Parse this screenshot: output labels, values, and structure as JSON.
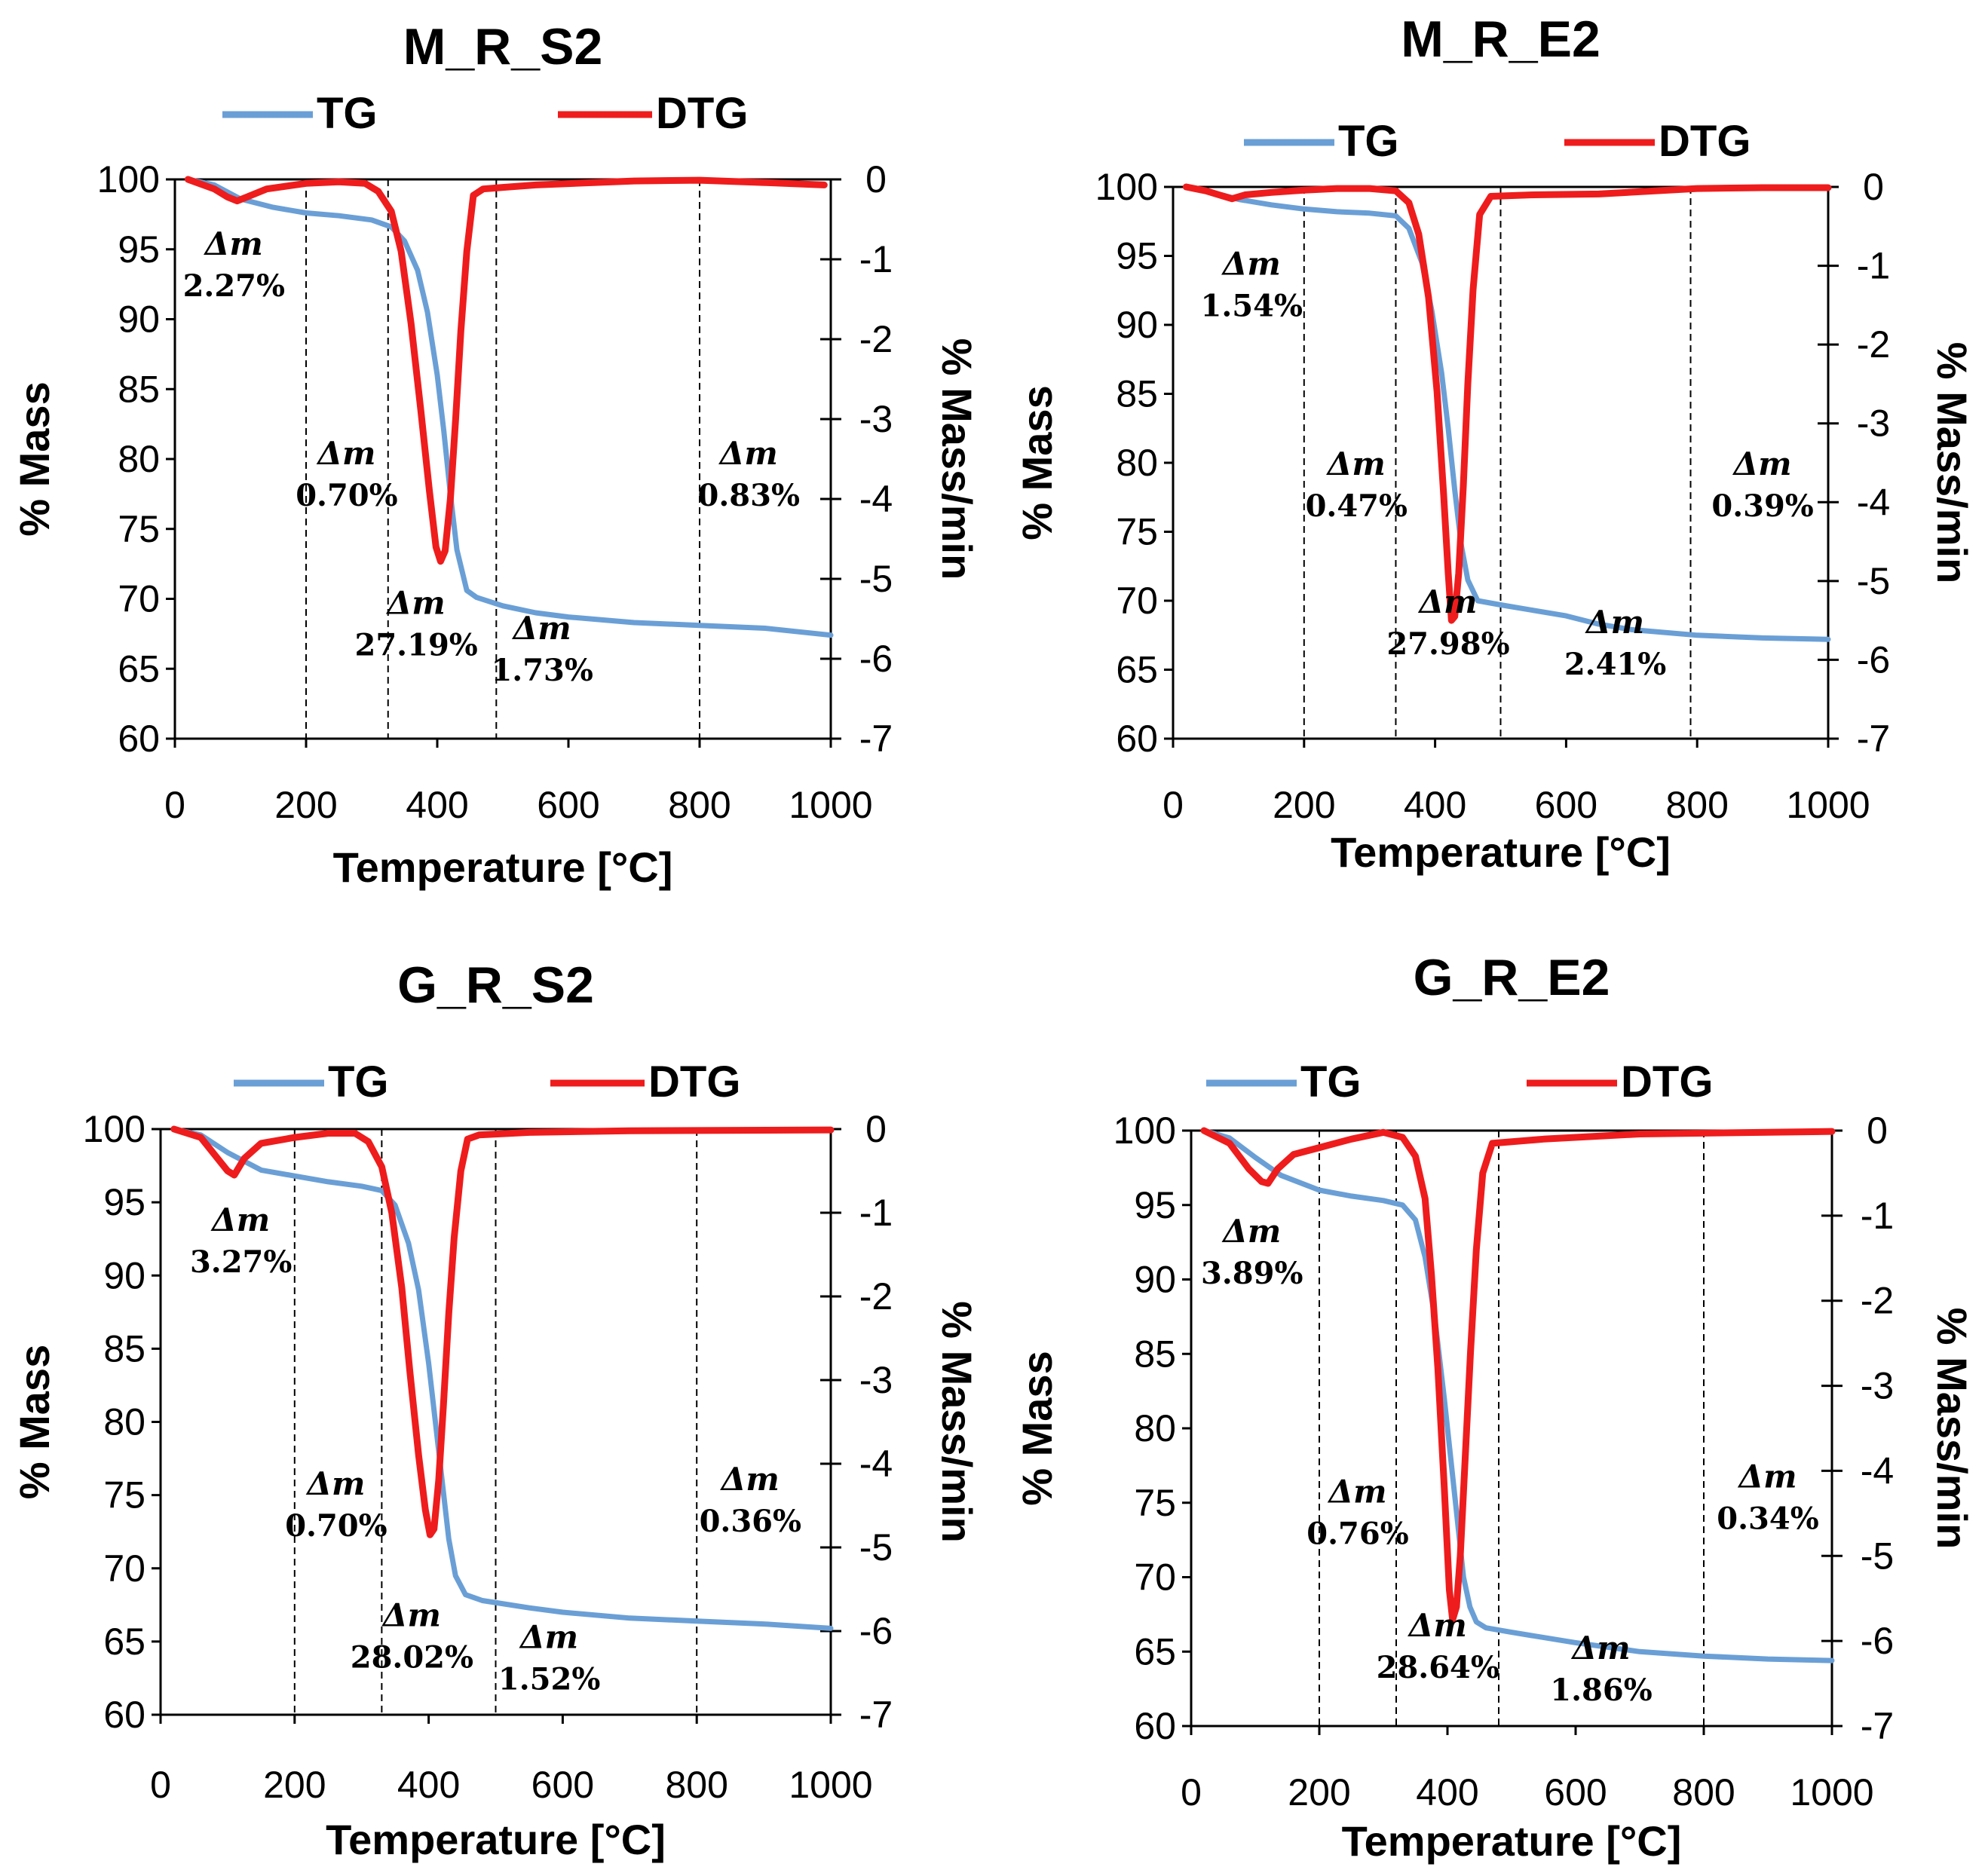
{
  "colors": {
    "tg": "#6a9fd6",
    "dtg": "#ee1c1c",
    "axis": "#000000",
    "divider": "#000000"
  },
  "axis_labels": {
    "x_title": "Temperature [°C]",
    "y_left_title": "% Mass",
    "y_right_title": "% Mass/min",
    "x_ticks": [
      "0",
      "200",
      "400",
      "600",
      "800",
      "1000"
    ],
    "y_left_ticks": [
      "60",
      "65",
      "70",
      "75",
      "80",
      "85",
      "90",
      "95",
      "100"
    ],
    "y_right_ticks": [
      "0",
      "-1",
      "-2",
      "-3",
      "-4",
      "-5",
      "-6",
      "-7"
    ]
  },
  "legend": {
    "tg": "TG",
    "dtg": "DTG"
  },
  "delta_symbol": "Δm",
  "chart_data": [
    {
      "type": "line",
      "title": "M_R_S2",
      "xlabel": "Temperature [°C]",
      "ylabel": "% Mass",
      "y2label": "% Mass/min",
      "xlim": [
        0,
        1000
      ],
      "ylim": [
        60,
        100
      ],
      "y2lim": [
        -7,
        0
      ],
      "dividers": [
        200,
        325,
        490,
        800
      ],
      "series": [
        {
          "name": "TG",
          "axis": "left",
          "x": [
            20,
            60,
            100,
            150,
            200,
            250,
            300,
            330,
            350,
            370,
            385,
            400,
            410,
            420,
            430,
            445,
            460,
            500,
            550,
            600,
            700,
            800,
            900,
            1000
          ],
          "y": [
            100,
            99.6,
            98.6,
            98.0,
            97.6,
            97.4,
            97.1,
            96.6,
            95.6,
            93.5,
            90.5,
            86.0,
            82.0,
            77.5,
            73.5,
            70.6,
            70.1,
            69.5,
            69.0,
            68.7,
            68.3,
            68.1,
            67.9,
            67.4
          ]
        },
        {
          "name": "DTG",
          "axis": "right",
          "x": [
            20,
            60,
            80,
            95,
            110,
            140,
            200,
            250,
            290,
            310,
            330,
            345,
            360,
            375,
            388,
            398,
            405,
            412,
            420,
            428,
            436,
            445,
            455,
            470,
            500,
            550,
            700,
            800,
            900,
            990
          ],
          "y": [
            0,
            -0.12,
            -0.22,
            -0.27,
            -0.22,
            -0.12,
            -0.05,
            -0.03,
            -0.05,
            -0.15,
            -0.4,
            -0.9,
            -1.8,
            -2.9,
            -3.9,
            -4.6,
            -4.78,
            -4.65,
            -4.0,
            -3.0,
            -1.9,
            -0.9,
            -0.2,
            -0.12,
            -0.1,
            -0.07,
            -0.02,
            -0.01,
            -0.04,
            -0.07
          ]
        }
      ],
      "annotations": [
        {
          "label": "Δm",
          "value": "2.27%",
          "x": 90,
          "y": 93.0
        },
        {
          "label": "Δm",
          "value": "0.70%",
          "x": 262,
          "y": 78.0
        },
        {
          "label": "Δm",
          "value": "27.19%",
          "x": 368,
          "y": 67.3
        },
        {
          "label": "Δm",
          "value": "1.73%",
          "x": 560,
          "y": 65.5
        },
        {
          "label": "Δm",
          "value": "0.83%",
          "x": 875,
          "y": 78.0
        }
      ]
    },
    {
      "type": "line",
      "title": "M_R_E2",
      "xlabel": "Temperature [°C]",
      "ylabel": "% Mass",
      "y2label": "% Mass/min",
      "xlim": [
        0,
        1000
      ],
      "ylim": [
        60,
        100
      ],
      "y2lim": [
        -7,
        0
      ],
      "dividers": [
        200,
        340,
        500,
        790
      ],
      "series": [
        {
          "name": "TG",
          "axis": "left",
          "x": [
            20,
            60,
            100,
            150,
            200,
            250,
            300,
            340,
            360,
            380,
            395,
            410,
            420,
            430,
            440,
            450,
            465,
            500,
            550,
            600,
            650,
            700,
            800,
            900,
            1000
          ],
          "y": [
            100,
            99.6,
            99.1,
            98.7,
            98.4,
            98.2,
            98.1,
            97.9,
            97.0,
            94.5,
            91.0,
            86.5,
            82.5,
            78.0,
            74.0,
            71.5,
            70.0,
            69.7,
            69.3,
            68.9,
            68.3,
            67.9,
            67.5,
            67.3,
            67.2
          ]
        },
        {
          "name": "DTG",
          "axis": "right",
          "x": [
            20,
            50,
            70,
            90,
            110,
            150,
            200,
            250,
            300,
            340,
            360,
            375,
            390,
            403,
            413,
            420,
            425,
            430,
            436,
            443,
            450,
            458,
            468,
            485,
            550,
            650,
            800,
            900,
            1000
          ],
          "y": [
            0,
            -0.05,
            -0.1,
            -0.15,
            -0.1,
            -0.07,
            -0.04,
            -0.02,
            -0.02,
            -0.05,
            -0.2,
            -0.6,
            -1.4,
            -2.6,
            -3.9,
            -4.9,
            -5.5,
            -5.45,
            -4.9,
            -3.8,
            -2.5,
            -1.3,
            -0.35,
            -0.12,
            -0.1,
            -0.09,
            -0.02,
            -0.01,
            -0.01
          ]
        }
      ],
      "annotations": [
        {
          "label": "Δm",
          "value": "1.54%",
          "x": 120,
          "y": 92.0
        },
        {
          "label": "Δm",
          "value": "0.47%",
          "x": 280,
          "y": 77.5
        },
        {
          "label": "Δm",
          "value": "27.98%",
          "x": 420,
          "y": 67.5
        },
        {
          "label": "Δm",
          "value": "2.41%",
          "x": 675,
          "y": 66.0
        },
        {
          "label": "Δm",
          "value": "0.39%",
          "x": 900,
          "y": 77.5
        }
      ]
    },
    {
      "type": "line",
      "title": "G_R_S2",
      "xlabel": "Temperature [°C]",
      "ylabel": "% Mass",
      "y2label": "% Mass/min",
      "xlim": [
        0,
        1000
      ],
      "ylim": [
        60,
        100
      ],
      "y2lim": [
        -7,
        0
      ],
      "dividers": [
        200,
        330,
        500,
        800
      ],
      "series": [
        {
          "name": "TG",
          "axis": "left",
          "x": [
            20,
            60,
            100,
            150,
            200,
            250,
            300,
            330,
            350,
            370,
            385,
            400,
            410,
            420,
            430,
            440,
            455,
            480,
            550,
            600,
            700,
            800,
            900,
            1000
          ],
          "y": [
            100,
            99.6,
            98.4,
            97.2,
            96.8,
            96.4,
            96.1,
            95.8,
            94.8,
            92.2,
            89.0,
            84.0,
            80.0,
            76.0,
            72.0,
            69.5,
            68.2,
            67.8,
            67.3,
            67.0,
            66.6,
            66.4,
            66.2,
            65.9
          ]
        },
        {
          "name": "DTG",
          "axis": "right",
          "x": [
            20,
            60,
            80,
            100,
            110,
            125,
            150,
            200,
            250,
            290,
            310,
            330,
            345,
            360,
            372,
            385,
            395,
            402,
            408,
            415,
            422,
            430,
            438,
            448,
            458,
            475,
            550,
            700,
            1000
          ],
          "y": [
            0,
            -0.1,
            -0.3,
            -0.5,
            -0.55,
            -0.35,
            -0.17,
            -0.1,
            -0.05,
            -0.05,
            -0.15,
            -0.45,
            -1.0,
            -1.9,
            -2.9,
            -3.9,
            -4.55,
            -4.85,
            -4.78,
            -4.2,
            -3.3,
            -2.2,
            -1.3,
            -0.5,
            -0.12,
            -0.07,
            -0.04,
            -0.02,
            -0.01
          ]
        }
      ],
      "annotations": [
        {
          "label": "Δm",
          "value": "3.27%",
          "x": 120,
          "y": 91.5
        },
        {
          "label": "Δm",
          "value": "0.70%",
          "x": 262,
          "y": 73.5
        },
        {
          "label": "Δm",
          "value": "28.02%",
          "x": 375,
          "y": 64.5
        },
        {
          "label": "Δm",
          "value": "1.52%",
          "x": 580,
          "y": 63.0
        },
        {
          "label": "Δm",
          "value": "0.36%",
          "x": 880,
          "y": 73.8
        }
      ]
    },
    {
      "type": "line",
      "title": "G_R_E2",
      "xlabel": "Temperature [°C]",
      "ylabel": "% Mass",
      "y2label": "% Mass/min",
      "xlim": [
        0,
        1000
      ],
      "ylim": [
        60,
        100
      ],
      "y2lim": [
        -7,
        0
      ],
      "dividers": [
        200,
        320,
        480,
        800
      ],
      "series": [
        {
          "name": "TG",
          "axis": "left",
          "x": [
            20,
            60,
            100,
            140,
            200,
            250,
            300,
            330,
            350,
            365,
            380,
            395,
            405,
            415,
            425,
            435,
            445,
            460,
            500,
            600,
            700,
            800,
            900,
            1000
          ],
          "y": [
            100,
            99.5,
            98.2,
            97.0,
            96.0,
            95.6,
            95.3,
            95.0,
            94.0,
            91.5,
            87.5,
            82.0,
            78.0,
            74.0,
            70.0,
            68.0,
            67.0,
            66.6,
            66.3,
            65.6,
            65.0,
            64.7,
            64.5,
            64.4
          ]
        },
        {
          "name": "DTG",
          "axis": "right",
          "x": [
            20,
            60,
            90,
            110,
            120,
            135,
            160,
            200,
            250,
            300,
            330,
            350,
            365,
            375,
            385,
            395,
            403,
            408,
            414,
            420,
            428,
            436,
            445,
            455,
            470,
            550,
            700,
            1000
          ],
          "y": [
            0,
            -0.15,
            -0.45,
            -0.6,
            -0.62,
            -0.45,
            -0.28,
            -0.2,
            -0.1,
            -0.02,
            -0.08,
            -0.3,
            -0.8,
            -1.7,
            -2.8,
            -4.2,
            -5.4,
            -5.75,
            -5.6,
            -5.0,
            -3.8,
            -2.6,
            -1.4,
            -0.5,
            -0.15,
            -0.1,
            -0.04,
            -0.01
          ]
        }
      ],
      "annotations": [
        {
          "label": "Δm",
          "value": "3.89%",
          "x": 95,
          "y": 91.0
        },
        {
          "label": "Δm",
          "value": "0.76%",
          "x": 260,
          "y": 73.5
        },
        {
          "label": "Δm",
          "value": "28.64%",
          "x": 385,
          "y": 64.5
        },
        {
          "label": "Δm",
          "value": "1.86%",
          "x": 640,
          "y": 63.0
        },
        {
          "label": "Δm",
          "value": "0.34%",
          "x": 900,
          "y": 74.5
        }
      ]
    }
  ]
}
